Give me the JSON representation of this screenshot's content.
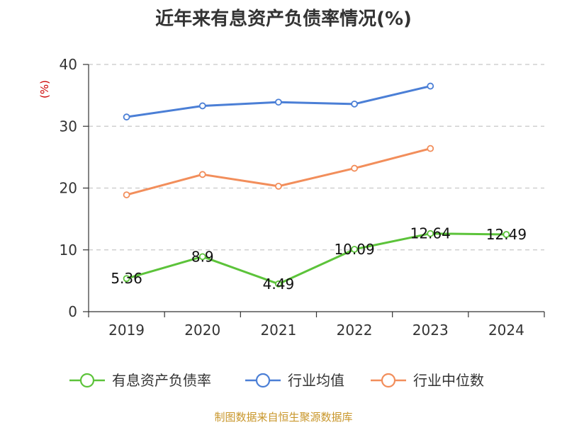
{
  "title": "近年来有息资产负债率情况(%)",
  "source": "制图数据来自恒生聚源数据库",
  "chart_data": {
    "type": "line",
    "title": "近年来有息资产负债率情况(%)",
    "ylabel": "(%)",
    "xlabel": "",
    "categories": [
      "2019",
      "2020",
      "2021",
      "2022",
      "2023",
      "2024"
    ],
    "ylim": [
      0,
      40
    ],
    "yticks": [
      0,
      10,
      20,
      30,
      40
    ],
    "grid": true,
    "legend": "bottom",
    "series": [
      {
        "name": "有息资产负债率",
        "color": "#5cc33a",
        "values": [
          5.36,
          8.9,
          4.49,
          10.09,
          12.64,
          12.49
        ],
        "labels": true
      },
      {
        "name": "行业均值",
        "color": "#4b7fd6",
        "values": [
          31.5,
          33.3,
          33.9,
          33.6,
          36.5,
          null
        ],
        "labels": false
      },
      {
        "name": "行业中位数",
        "color": "#f28e5b",
        "values": [
          18.9,
          22.2,
          20.3,
          23.2,
          26.4,
          null
        ],
        "labels": false
      }
    ]
  }
}
